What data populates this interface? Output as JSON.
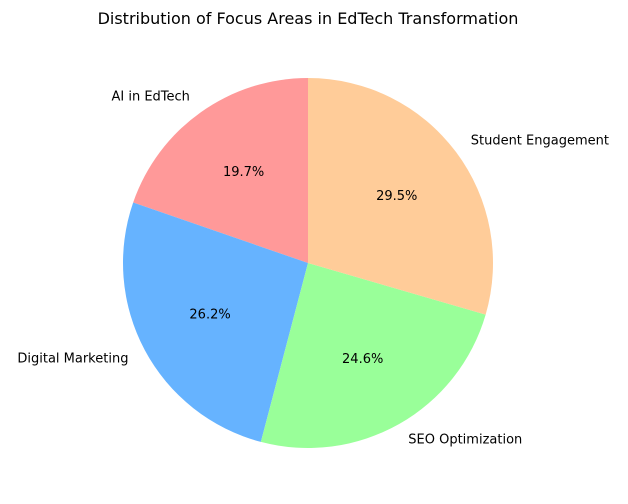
{
  "chart_data": {
    "type": "pie",
    "title": "Distribution of Focus Areas in EdTech Transformation",
    "slices": [
      {
        "label": "AI in EdTech",
        "value": 19.7,
        "display": "19.7%",
        "color": "#ff9999"
      },
      {
        "label": "Digital Marketing",
        "value": 26.2,
        "display": "26.2%",
        "color": "#66b3ff"
      },
      {
        "label": "SEO Optimization",
        "value": 24.6,
        "display": "24.6%",
        "color": "#99ff99"
      },
      {
        "label": "Student Engagement",
        "value": 29.5,
        "display": "29.5%",
        "color": "#ffcc99"
      }
    ],
    "start_angle": 90,
    "direction": "counterclockwise",
    "legend": "none"
  }
}
